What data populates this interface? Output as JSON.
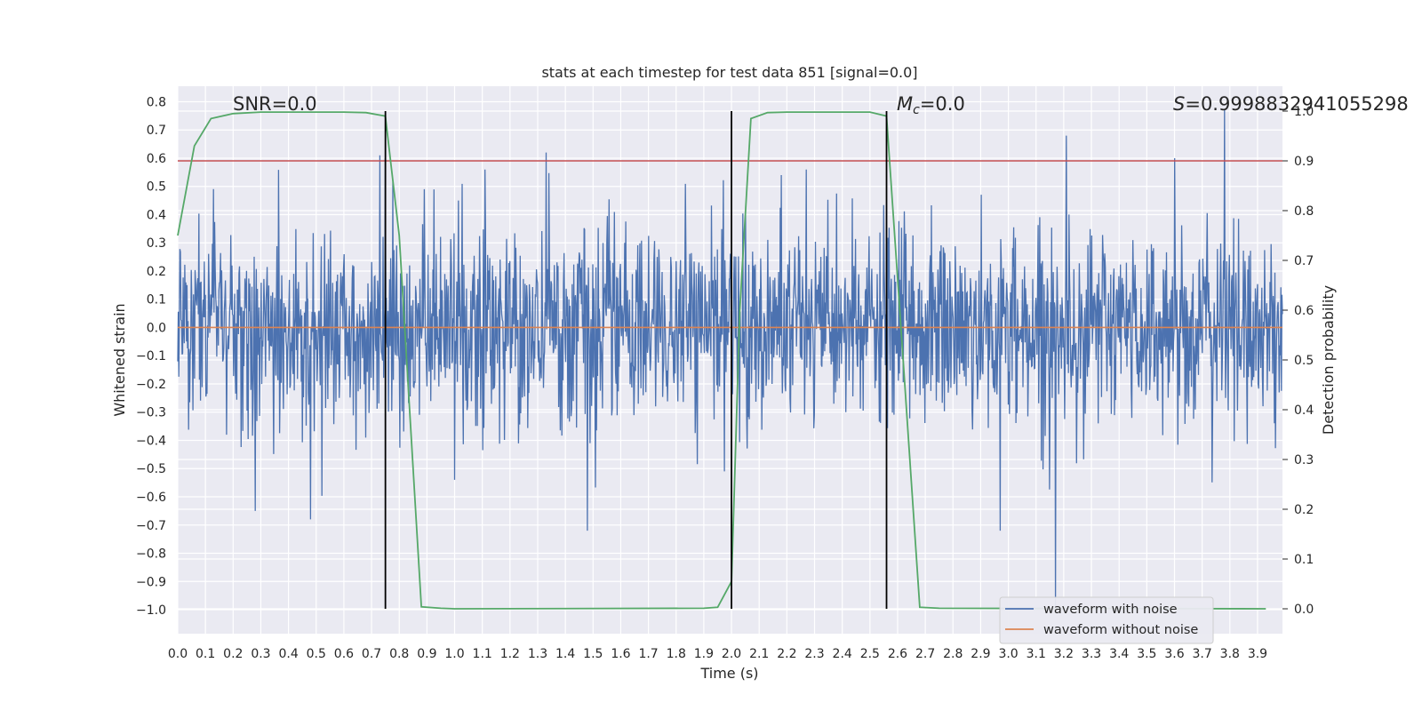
{
  "chart_data": {
    "type": "line",
    "title": "stats at each timestep for test data 851 [signal=0.0]",
    "xlabel": "Time (s)",
    "ylabel": "Whitened strain",
    "y2label": "Detection probability",
    "xlim": [
      0.0,
      3.99
    ],
    "ylim": [
      -1.085,
      0.855
    ],
    "y2lim": [
      -0.05,
      1.05
    ],
    "xticks": [
      "0.0",
      "0.1",
      "0.2",
      "0.3",
      "0.4",
      "0.5",
      "0.6",
      "0.7",
      "0.8",
      "0.9",
      "1.0",
      "1.1",
      "1.2",
      "1.3",
      "1.4",
      "1.5",
      "1.6",
      "1.7",
      "1.8",
      "1.9",
      "2.0",
      "2.1",
      "2.2",
      "2.3",
      "2.4",
      "2.5",
      "2.6",
      "2.7",
      "2.8",
      "2.9",
      "3.0",
      "3.1",
      "3.2",
      "3.3",
      "3.4",
      "3.5",
      "3.6",
      "3.7",
      "3.8",
      "3.9"
    ],
    "yticks": [
      "0.8",
      "0.7",
      "0.6",
      "0.5",
      "0.4",
      "0.3",
      "0.2",
      "0.1",
      "0.0",
      "-0.1",
      "-0.2",
      "-0.3",
      "-0.4",
      "-0.5",
      "-0.6",
      "-0.7",
      "-0.8",
      "-0.9",
      "-1.0"
    ],
    "y2ticks": [
      "1.0",
      "0.9",
      "0.8",
      "0.7",
      "0.6",
      "0.5",
      "0.4",
      "0.3",
      "0.2",
      "0.1",
      "0.0"
    ],
    "annotations": {
      "snr": "SNR=0.0",
      "mc_symbol": "M",
      "mc_sub": "c",
      "mc_value": "=0.0",
      "s_symbol": "S",
      "s_value": "=0.9998832941055298"
    },
    "threshold_y2": 0.9,
    "vertical_lines_x": [
      0.75,
      2.0,
      2.56
    ],
    "series": [
      {
        "name": "waveform with noise",
        "color": "#4c72b0",
        "noise_std": 0.17,
        "spikes": [
          [
            0.73,
            0.61
          ],
          [
            0.75,
            0.6
          ],
          [
            0.89,
            0.49
          ],
          [
            1.0,
            -0.54
          ],
          [
            1.33,
            0.62
          ],
          [
            1.48,
            -0.72
          ],
          [
            2.05,
            0.4
          ],
          [
            2.18,
            0.54
          ],
          [
            2.27,
            0.56
          ],
          [
            2.97,
            -0.72
          ],
          [
            3.21,
            0.68
          ],
          [
            3.17,
            -0.99
          ],
          [
            3.6,
            0.6
          ],
          [
            3.78,
            0.77
          ],
          [
            0.28,
            -0.65
          ],
          [
            0.48,
            -0.68
          ]
        ]
      },
      {
        "name": "waveform without noise",
        "color": "#dd8452",
        "values": "zero"
      },
      {
        "name": "detection probability",
        "axis": "y2",
        "color": "#55a868",
        "x": [
          0.0,
          0.06,
          0.12,
          0.2,
          0.3,
          0.6,
          0.68,
          0.75,
          0.8,
          0.88,
          0.95,
          1.0,
          1.9,
          1.95,
          2.0,
          2.03,
          2.07,
          2.13,
          2.2,
          2.5,
          2.56,
          2.62,
          2.68,
          2.75,
          3.93
        ],
        "y": [
          0.75,
          0.93,
          0.985,
          0.995,
          0.998,
          0.998,
          0.997,
          0.99,
          0.75,
          0.004,
          0.001,
          0.0,
          0.001,
          0.003,
          0.055,
          0.6,
          0.985,
          0.997,
          0.998,
          0.998,
          0.99,
          0.5,
          0.003,
          0.001,
          0.0
        ]
      },
      {
        "name": "threshold",
        "axis": "y2",
        "color": "#c44e52"
      }
    ],
    "legend": {
      "position": "lower-right",
      "entries": [
        "waveform with noise",
        "waveform without noise"
      ]
    }
  }
}
